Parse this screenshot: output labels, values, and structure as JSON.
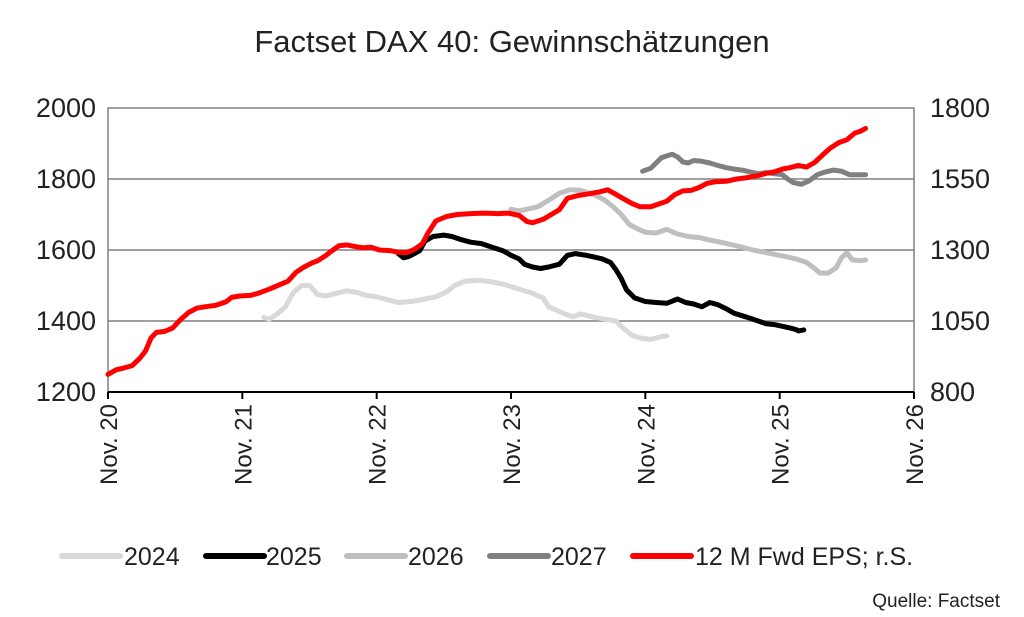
{
  "chart_data": {
    "type": "line",
    "title": "Factset DAX 40: Gewinnschätzungen",
    "source": "Quelle: Factset",
    "y_left": {
      "min": 1200,
      "max": 2000,
      "ticks": [
        "2000",
        "1800",
        "1600",
        "1400",
        "1200"
      ]
    },
    "y_right": {
      "min": 800,
      "max": 1800,
      "ticks": [
        "1800",
        "1550",
        "1300",
        "1050",
        "800"
      ]
    },
    "x": {
      "min": 0,
      "max": 6,
      "ticks": [
        "Nov. 20",
        "Nov. 21",
        "Nov. 22",
        "Nov. 23",
        "Nov. 24",
        "Nov. 25",
        "Nov. 26"
      ]
    },
    "grid": true,
    "legend_position": "bottom",
    "series": [
      {
        "name": "2024",
        "axis": "left",
        "color": "#d9d9d9",
        "points": [
          [
            1.16,
            1410
          ],
          [
            1.2,
            1405
          ],
          [
            1.26,
            1420
          ],
          [
            1.32,
            1440
          ],
          [
            1.38,
            1480
          ],
          [
            1.44,
            1500
          ],
          [
            1.5,
            1500
          ],
          [
            1.56,
            1475
          ],
          [
            1.62,
            1470
          ],
          [
            1.7,
            1478
          ],
          [
            1.78,
            1485
          ],
          [
            1.86,
            1480
          ],
          [
            1.92,
            1472
          ],
          [
            2.0,
            1468
          ],
          [
            2.08,
            1460
          ],
          [
            2.16,
            1452
          ],
          [
            2.26,
            1455
          ],
          [
            2.36,
            1462
          ],
          [
            2.44,
            1468
          ],
          [
            2.52,
            1482
          ],
          [
            2.58,
            1500
          ],
          [
            2.66,
            1512
          ],
          [
            2.76,
            1515
          ],
          [
            2.86,
            1510
          ],
          [
            2.96,
            1502
          ],
          [
            3.06,
            1490
          ],
          [
            3.16,
            1478
          ],
          [
            3.24,
            1465
          ],
          [
            3.28,
            1440
          ],
          [
            3.34,
            1430
          ],
          [
            3.4,
            1420
          ],
          [
            3.46,
            1412
          ],
          [
            3.52,
            1420
          ],
          [
            3.6,
            1412
          ],
          [
            3.7,
            1405
          ],
          [
            3.78,
            1400
          ],
          [
            3.82,
            1385
          ],
          [
            3.86,
            1372
          ],
          [
            3.9,
            1360
          ],
          [
            3.96,
            1352
          ],
          [
            4.04,
            1348
          ],
          [
            4.12,
            1356
          ],
          [
            4.16,
            1358
          ]
        ]
      },
      {
        "name": "2025",
        "axis": "left",
        "color": "#000000",
        "points": [
          [
            2.16,
            1590
          ],
          [
            2.2,
            1578
          ],
          [
            2.24,
            1582
          ],
          [
            2.28,
            1590
          ],
          [
            2.32,
            1598
          ],
          [
            2.36,
            1625
          ],
          [
            2.42,
            1638
          ],
          [
            2.5,
            1642
          ],
          [
            2.56,
            1638
          ],
          [
            2.62,
            1630
          ],
          [
            2.7,
            1622
          ],
          [
            2.78,
            1618
          ],
          [
            2.86,
            1608
          ],
          [
            2.94,
            1598
          ],
          [
            3.0,
            1585
          ],
          [
            3.06,
            1575
          ],
          [
            3.1,
            1560
          ],
          [
            3.16,
            1552
          ],
          [
            3.22,
            1548
          ],
          [
            3.28,
            1552
          ],
          [
            3.36,
            1560
          ],
          [
            3.42,
            1585
          ],
          [
            3.48,
            1590
          ],
          [
            3.56,
            1585
          ],
          [
            3.62,
            1580
          ],
          [
            3.68,
            1575
          ],
          [
            3.74,
            1565
          ],
          [
            3.78,
            1545
          ],
          [
            3.82,
            1520
          ],
          [
            3.86,
            1488
          ],
          [
            3.92,
            1465
          ],
          [
            4.0,
            1455
          ],
          [
            4.08,
            1452
          ],
          [
            4.16,
            1450
          ],
          [
            4.24,
            1462
          ],
          [
            4.3,
            1452
          ],
          [
            4.36,
            1448
          ],
          [
            4.42,
            1440
          ],
          [
            4.48,
            1452
          ],
          [
            4.54,
            1446
          ],
          [
            4.6,
            1435
          ],
          [
            4.66,
            1422
          ],
          [
            4.72,
            1415
          ],
          [
            4.78,
            1408
          ],
          [
            4.84,
            1400
          ],
          [
            4.9,
            1392
          ],
          [
            4.96,
            1390
          ],
          [
            5.02,
            1385
          ],
          [
            5.08,
            1380
          ],
          [
            5.12,
            1376
          ],
          [
            5.14,
            1372
          ],
          [
            5.18,
            1375
          ]
        ]
      },
      {
        "name": "2026",
        "axis": "left",
        "color": "#bfbfbf",
        "points": [
          [
            3.0,
            1715
          ],
          [
            3.06,
            1710
          ],
          [
            3.12,
            1715
          ],
          [
            3.2,
            1722
          ],
          [
            3.28,
            1740
          ],
          [
            3.36,
            1760
          ],
          [
            3.44,
            1770
          ],
          [
            3.52,
            1768
          ],
          [
            3.58,
            1760
          ],
          [
            3.64,
            1752
          ],
          [
            3.7,
            1740
          ],
          [
            3.76,
            1722
          ],
          [
            3.82,
            1700
          ],
          [
            3.88,
            1672
          ],
          [
            3.94,
            1660
          ],
          [
            4.0,
            1650
          ],
          [
            4.08,
            1648
          ],
          [
            4.16,
            1658
          ],
          [
            4.24,
            1645
          ],
          [
            4.32,
            1638
          ],
          [
            4.4,
            1635
          ],
          [
            4.48,
            1628
          ],
          [
            4.56,
            1622
          ],
          [
            4.64,
            1615
          ],
          [
            4.72,
            1608
          ],
          [
            4.8,
            1600
          ],
          [
            4.88,
            1594
          ],
          [
            4.96,
            1588
          ],
          [
            5.04,
            1582
          ],
          [
            5.12,
            1575
          ],
          [
            5.2,
            1565
          ],
          [
            5.26,
            1548
          ],
          [
            5.3,
            1535
          ],
          [
            5.36,
            1535
          ],
          [
            5.42,
            1550
          ],
          [
            5.46,
            1578
          ],
          [
            5.5,
            1592
          ],
          [
            5.54,
            1572
          ],
          [
            5.6,
            1570
          ],
          [
            5.64,
            1572
          ]
        ]
      },
      {
        "name": "2027",
        "axis": "left",
        "color": "#808080",
        "points": [
          [
            3.98,
            1822
          ],
          [
            4.04,
            1830
          ],
          [
            4.08,
            1845
          ],
          [
            4.12,
            1860
          ],
          [
            4.16,
            1865
          ],
          [
            4.2,
            1870
          ],
          [
            4.24,
            1862
          ],
          [
            4.28,
            1848
          ],
          [
            4.32,
            1845
          ],
          [
            4.36,
            1852
          ],
          [
            4.42,
            1850
          ],
          [
            4.48,
            1845
          ],
          [
            4.54,
            1838
          ],
          [
            4.6,
            1832
          ],
          [
            4.66,
            1828
          ],
          [
            4.72,
            1825
          ],
          [
            4.78,
            1820
          ],
          [
            4.84,
            1815
          ],
          [
            4.9,
            1818
          ],
          [
            4.96,
            1815
          ],
          [
            5.02,
            1812
          ],
          [
            5.06,
            1800
          ],
          [
            5.1,
            1790
          ],
          [
            5.16,
            1785
          ],
          [
            5.22,
            1795
          ],
          [
            5.28,
            1812
          ],
          [
            5.34,
            1820
          ],
          [
            5.4,
            1825
          ],
          [
            5.46,
            1822
          ],
          [
            5.52,
            1812
          ],
          [
            5.58,
            1812
          ],
          [
            5.64,
            1812
          ]
        ]
      },
      {
        "name": "12 M Fwd EPS; r.S.",
        "axis": "right",
        "color": "#ff0000",
        "points": [
          [
            0.0,
            862
          ],
          [
            0.06,
            878
          ],
          [
            0.12,
            885
          ],
          [
            0.18,
            893
          ],
          [
            0.24,
            920
          ],
          [
            0.28,
            945
          ],
          [
            0.32,
            990
          ],
          [
            0.36,
            1010
          ],
          [
            0.42,
            1013
          ],
          [
            0.48,
            1025
          ],
          [
            0.54,
            1055
          ],
          [
            0.6,
            1080
          ],
          [
            0.66,
            1095
          ],
          [
            0.72,
            1100
          ],
          [
            0.8,
            1105
          ],
          [
            0.88,
            1118
          ],
          [
            0.92,
            1133
          ],
          [
            0.98,
            1138
          ],
          [
            1.06,
            1140
          ],
          [
            1.12,
            1148
          ],
          [
            1.2,
            1162
          ],
          [
            1.28,
            1178
          ],
          [
            1.34,
            1190
          ],
          [
            1.4,
            1222
          ],
          [
            1.46,
            1240
          ],
          [
            1.52,
            1255
          ],
          [
            1.56,
            1262
          ],
          [
            1.62,
            1280
          ],
          [
            1.66,
            1295
          ],
          [
            1.72,
            1315
          ],
          [
            1.78,
            1318
          ],
          [
            1.84,
            1312
          ],
          [
            1.9,
            1308
          ],
          [
            1.96,
            1310
          ],
          [
            2.02,
            1300
          ],
          [
            2.1,
            1298
          ],
          [
            2.16,
            1292
          ],
          [
            2.22,
            1290
          ],
          [
            2.28,
            1302
          ],
          [
            2.34,
            1322
          ],
          [
            2.38,
            1358
          ],
          [
            2.44,
            1402
          ],
          [
            2.52,
            1418
          ],
          [
            2.6,
            1425
          ],
          [
            2.7,
            1428
          ],
          [
            2.8,
            1430
          ],
          [
            2.9,
            1428
          ],
          [
            2.98,
            1430
          ],
          [
            3.06,
            1422
          ],
          [
            3.12,
            1400
          ],
          [
            3.16,
            1396
          ],
          [
            3.24,
            1408
          ],
          [
            3.3,
            1425
          ],
          [
            3.36,
            1442
          ],
          [
            3.42,
            1482
          ],
          [
            3.5,
            1492
          ],
          [
            3.58,
            1498
          ],
          [
            3.66,
            1505
          ],
          [
            3.72,
            1512
          ],
          [
            3.78,
            1496
          ],
          [
            3.84,
            1480
          ],
          [
            3.9,
            1464
          ],
          [
            3.96,
            1452
          ],
          [
            4.04,
            1452
          ],
          [
            4.1,
            1462
          ],
          [
            4.16,
            1472
          ],
          [
            4.22,
            1495
          ],
          [
            4.28,
            1508
          ],
          [
            4.34,
            1510
          ],
          [
            4.4,
            1520
          ],
          [
            4.46,
            1535
          ],
          [
            4.52,
            1540
          ],
          [
            4.6,
            1542
          ],
          [
            4.68,
            1550
          ],
          [
            4.76,
            1555
          ],
          [
            4.84,
            1562
          ],
          [
            4.9,
            1570
          ],
          [
            4.96,
            1575
          ],
          [
            5.02,
            1585
          ],
          [
            5.08,
            1590
          ],
          [
            5.14,
            1598
          ],
          [
            5.2,
            1592
          ],
          [
            5.26,
            1608
          ],
          [
            5.32,
            1635
          ],
          [
            5.38,
            1660
          ],
          [
            5.44,
            1678
          ],
          [
            5.5,
            1688
          ],
          [
            5.56,
            1712
          ],
          [
            5.6,
            1718
          ],
          [
            5.64,
            1728
          ]
        ]
      }
    ]
  }
}
